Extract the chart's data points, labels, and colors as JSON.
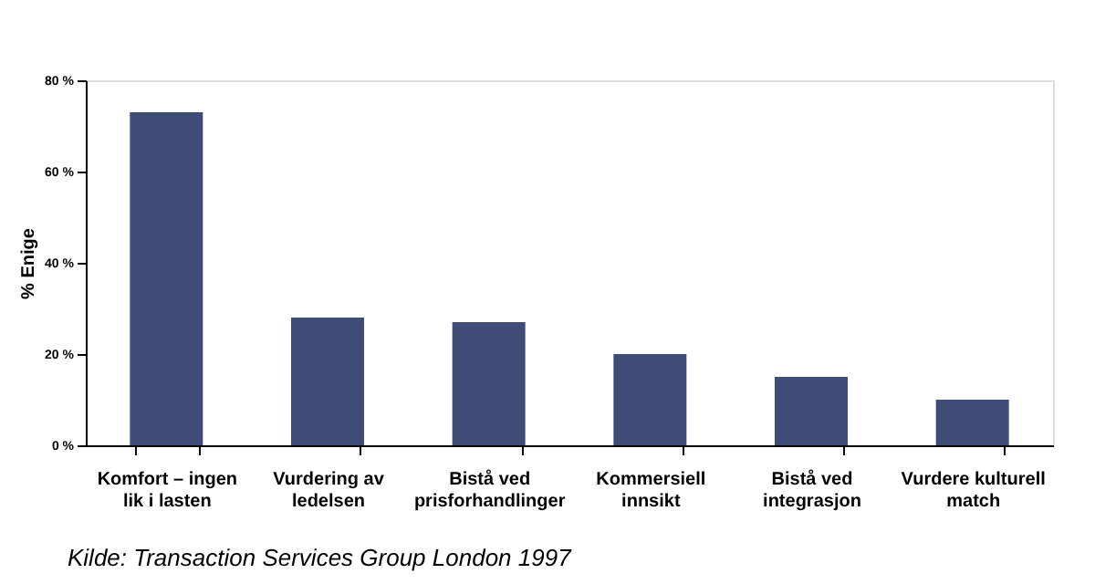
{
  "chart_data": {
    "type": "bar",
    "categories": [
      "Komfort – ingen lik i lasten",
      "Vurdering av ledelsen",
      "Bistå ved prisforhandlinger",
      "Kommersiell innsikt",
      "Bistå ved integrasjon",
      "Vurdere kulturell match"
    ],
    "values": [
      73,
      28,
      27,
      20,
      15,
      10
    ],
    "color": "#3f4c78",
    "ylabel": "% Enige",
    "ylim": [
      0,
      80
    ],
    "yticks": [
      {
        "value": 0,
        "label": "0 %"
      },
      {
        "value": 20,
        "label": "20 %"
      },
      {
        "value": 40,
        "label": "40 %"
      },
      {
        "value": 60,
        "label": "60 %"
      },
      {
        "value": 80,
        "label": "80 %"
      }
    ],
    "grid": false,
    "annotations": [
      "Kilde: Transaction Services Group London 1997"
    ]
  }
}
